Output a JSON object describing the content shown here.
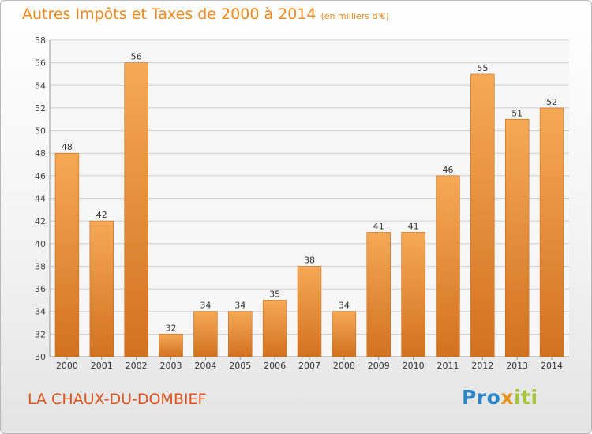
{
  "header": {
    "title": "Autres Impôts et Taxes de 2000 à 2014",
    "unit": "(en milliers d'€)"
  },
  "footer": {
    "commune": "LA CHAUX-DU-DOMBIEF",
    "logo_text": "Proxiti"
  },
  "colors": {
    "title": "#f08a1c",
    "commune": "#e0531d",
    "bar_light": "#f6a955",
    "bar_dark": "#d27220",
    "grid": "#d0d0d0"
  },
  "chart_data": {
    "type": "bar",
    "title": "Autres Impôts et Taxes de 2000 à 2014",
    "xlabel": "",
    "ylabel": "",
    "categories": [
      "2000",
      "2001",
      "2002",
      "2003",
      "2004",
      "2005",
      "2006",
      "2007",
      "2008",
      "2009",
      "2010",
      "2011",
      "2012",
      "2013",
      "2014"
    ],
    "values": [
      48,
      42,
      56,
      32,
      34,
      34,
      35,
      38,
      34,
      41,
      41,
      46,
      55,
      51,
      52
    ],
    "ylim": [
      30,
      58
    ],
    "yticks": [
      30,
      32,
      34,
      36,
      38,
      40,
      42,
      44,
      46,
      48,
      50,
      52,
      54,
      56,
      58
    ],
    "grid": true,
    "data_labels": true
  }
}
